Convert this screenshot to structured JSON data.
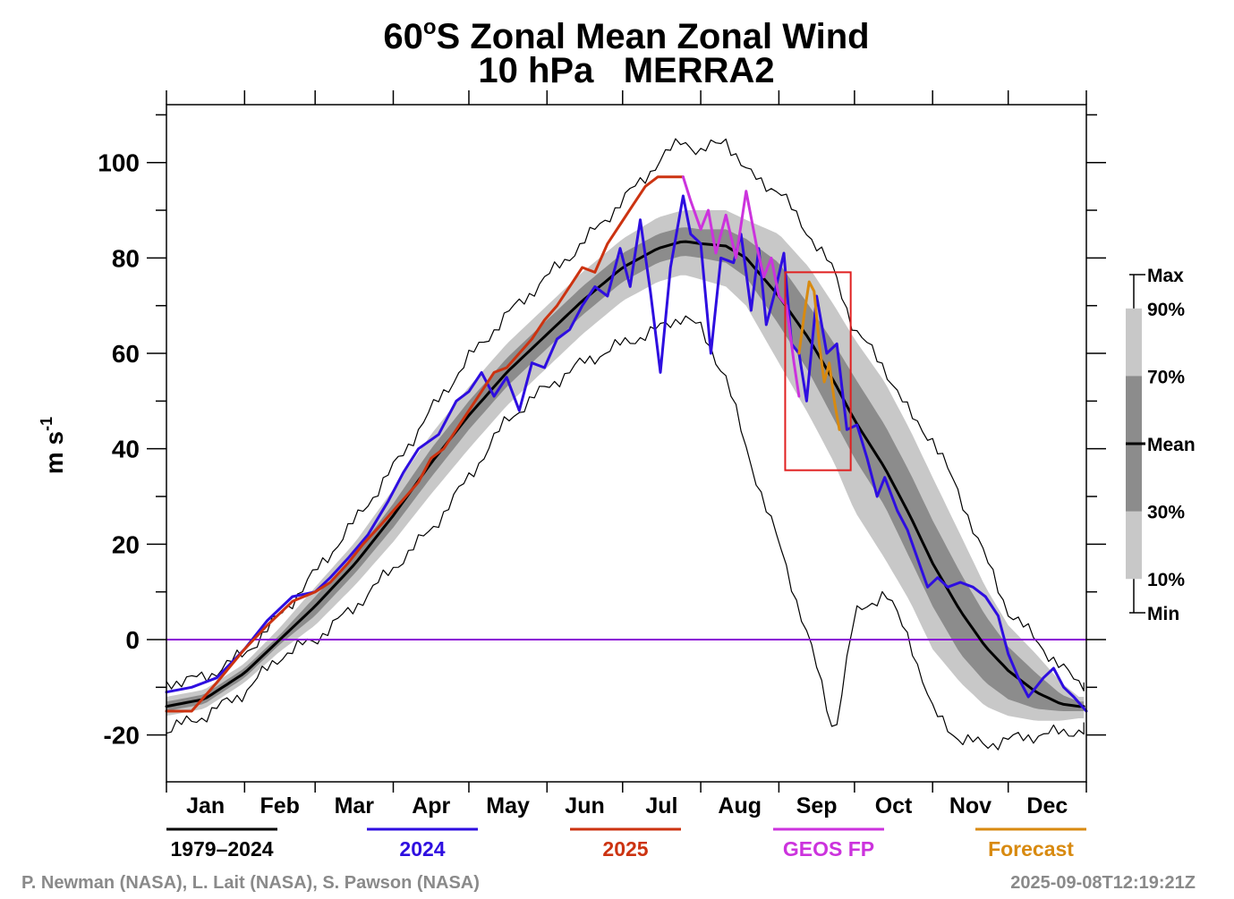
{
  "chart_data": {
    "type": "line",
    "title": "60°S Zonal Mean Zonal Wind",
    "title_prefix": "60",
    "title_degree": "o",
    "title_suffix": "S Zonal Mean Zonal Wind",
    "subtitle": "10 hPa   MERRA2",
    "ylabel_main": "m s",
    "ylabel_sup": "-1",
    "ylim": [
      -30,
      112
    ],
    "xlim": [
      0,
      365
    ],
    "y_ticks": [
      100,
      80,
      60,
      40,
      20,
      0,
      -20
    ],
    "y_tick_labels": [
      "100",
      "80",
      "60",
      "40",
      "20",
      "0",
      "-20"
    ],
    "months": [
      "Jan",
      "Feb",
      "Mar",
      "Apr",
      "May",
      "Jun",
      "Jul",
      "Aug",
      "Sep",
      "Oct",
      "Nov",
      "Dec"
    ],
    "month_starts": [
      0,
      31,
      59,
      90,
      120,
      151,
      181,
      212,
      243,
      273,
      304,
      334,
      365
    ],
    "zero_line": 0,
    "colors": {
      "mean": "#000000",
      "band_outer": "#c8c8c8",
      "band_inner": "#8c8c8c",
      "y2024": "#2e0ee0",
      "y2025": "#cc3311",
      "geos_fp": "#cc33dd",
      "forecast": "#d88a10",
      "zero_line": "#8a00d6",
      "highlight_box": "#e02020"
    },
    "climatology_curve": {
      "x": [
        0,
        15,
        31,
        45,
        59,
        75,
        90,
        105,
        120,
        135,
        151,
        165,
        181,
        195,
        205,
        212,
        222,
        230,
        243,
        255,
        265,
        273,
        285,
        295,
        304,
        315,
        325,
        334,
        345,
        355,
        362
      ],
      "mean": [
        -14,
        -12.5,
        -7,
        0,
        7,
        16,
        26,
        37,
        47,
        56,
        64,
        71,
        78,
        82,
        83.5,
        83,
        82.5,
        80,
        72,
        63,
        54,
        46,
        36,
        26,
        16,
        6,
        -1.5,
        -6.5,
        -11,
        -13.5,
        -14
      ],
      "p30": [
        -15,
        -13.5,
        -8,
        -1,
        5,
        14,
        23.5,
        34,
        44,
        53,
        61,
        68,
        75,
        79,
        80.5,
        80,
        79,
        76,
        66,
        56,
        46,
        38,
        28,
        17,
        7,
        -3,
        -9,
        -12.5,
        -14.5,
        -15,
        -15
      ],
      "p70": [
        -13,
        -11.5,
        -6,
        1,
        9,
        18,
        28.5,
        40,
        50,
        59,
        67,
        74,
        81,
        85,
        86.5,
        86,
        86,
        84,
        79,
        70,
        62,
        55,
        45,
        35,
        25,
        14,
        5,
        -1.5,
        -7,
        -11.5,
        -13
      ],
      "p10": [
        -16,
        -14.5,
        -9,
        -2.5,
        3,
        11.5,
        20.5,
        30.5,
        40,
        49,
        57,
        64,
        71,
        75,
        76.5,
        75.5,
        74,
        70,
        58,
        47,
        37,
        27,
        17,
        8,
        -2,
        -9,
        -14,
        -16,
        -17,
        -17,
        -16.5
      ],
      "p90": [
        -12,
        -10.5,
        -5,
        2.5,
        11,
        20.5,
        31.5,
        43,
        53,
        62,
        70,
        77,
        84,
        88.5,
        90,
        90,
        90,
        88,
        85,
        78,
        70,
        63,
        54,
        44,
        34,
        22,
        11,
        3,
        -3,
        -9,
        -12
      ],
      "min": [
        -19,
        -16,
        -11,
        -3.5,
        0,
        7,
        15,
        23,
        34,
        46,
        53,
        58,
        62,
        65,
        68,
        65,
        55,
        40,
        20,
        0,
        -20,
        5,
        10,
        0,
        -15,
        -21,
        -22,
        -21,
        -20,
        -19.5,
        -19
      ],
      "max": [
        -9,
        -8,
        -3,
        5,
        14,
        25,
        36,
        48,
        59,
        68,
        76,
        83,
        92,
        100,
        105,
        102,
        105,
        98,
        94,
        85,
        77,
        65,
        57,
        47,
        42,
        30,
        17,
        6,
        0,
        -6,
        -9
      ]
    },
    "series": [
      {
        "name": "1979–2024",
        "color": "#000000",
        "style": "mean"
      },
      {
        "name": "2024",
        "color": "#2e0ee0",
        "x": [
          0,
          10,
          20,
          31,
          40,
          50,
          59,
          65,
          72,
          80,
          88,
          94,
          100,
          108,
          115,
          120,
          125,
          130,
          135,
          140,
          145,
          150,
          155,
          160,
          165,
          170,
          175,
          180,
          184,
          188,
          192,
          196,
          200,
          205,
          208,
          212,
          216,
          220,
          225,
          228,
          232,
          235,
          238,
          241,
          245,
          248,
          251,
          254,
          258,
          262,
          266,
          270,
          274,
          278,
          282,
          285,
          290,
          294,
          298,
          302,
          306,
          310,
          315,
          320,
          325,
          330,
          334,
          338,
          342,
          348,
          352,
          356,
          360,
          365
        ],
        "y": [
          -11,
          -10,
          -8,
          -2,
          4,
          9,
          10,
          13,
          17,
          22,
          29,
          35,
          40,
          43,
          50,
          52,
          56,
          51,
          55,
          48,
          58,
          57,
          63,
          65,
          70,
          74,
          72,
          82,
          74,
          88,
          73,
          56,
          78,
          93,
          85,
          83,
          60,
          80,
          79,
          85,
          69,
          82,
          66,
          72,
          81,
          62,
          60,
          50,
          72,
          60,
          62,
          44,
          45,
          38,
          30,
          34,
          27,
          23,
          17,
          11,
          13,
          11,
          12,
          11,
          9,
          5,
          -3,
          -8,
          -12,
          -8,
          -6,
          -10,
          -12,
          -15
        ]
      },
      {
        "name": "2025",
        "color": "#cc3311",
        "x": [
          0,
          10,
          20,
          31,
          40,
          50,
          59,
          65,
          72,
          78,
          85,
          90,
          95,
          100,
          105,
          110,
          115,
          120,
          125,
          130,
          135,
          140,
          145,
          150,
          155,
          160,
          165,
          170,
          175,
          180,
          185,
          190,
          195,
          200,
          205
        ],
        "y": [
          -15,
          -15,
          -9,
          -2,
          3,
          8,
          10,
          12,
          16,
          20,
          24,
          27,
          30,
          33,
          38,
          40,
          44,
          48,
          52,
          56,
          57,
          60,
          63,
          67,
          70,
          74,
          78,
          77,
          83,
          87,
          91,
          95,
          97,
          97,
          97
        ]
      },
      {
        "name": "GEOS FP",
        "color": "#cc33dd",
        "x": [
          205,
          208,
          212,
          215,
          218,
          222,
          226,
          230,
          234,
          237,
          240,
          243,
          246,
          249,
          251
        ],
        "y": [
          97,
          92,
          86,
          90,
          81,
          89,
          80,
          94,
          83,
          76,
          80,
          72,
          70,
          58,
          51
        ]
      },
      {
        "name": "Forecast",
        "color": "#d88a10",
        "x": [
          251,
          253,
          255,
          257,
          259,
          261,
          263,
          265,
          267
        ],
        "y": [
          60,
          68,
          75,
          73,
          62,
          54,
          58,
          50,
          44
        ]
      }
    ],
    "highlight_box": {
      "x": [
        245.5,
        271.5
      ],
      "y": [
        35.5,
        77
      ]
    },
    "legend": {
      "position": "right",
      "items": [
        {
          "label": "Max",
          "value": 100
        },
        {
          "label": "90%",
          "value": 90
        },
        {
          "label": "70%",
          "value": 70
        },
        {
          "label": "Mean",
          "value": 50
        },
        {
          "label": "30%",
          "value": 30
        },
        {
          "label": "10%",
          "value": 10
        },
        {
          "label": "Min",
          "value": 0
        }
      ]
    },
    "bottom_legend": [
      {
        "label": "1979–2024",
        "color": "#000000"
      },
      {
        "label": "2024",
        "color": "#2e0ee0"
      },
      {
        "label": "2025",
        "color": "#cc3311"
      },
      {
        "label": "GEOS FP",
        "color": "#cc33dd"
      },
      {
        "label": "Forecast",
        "color": "#d88a10"
      }
    ],
    "grid": false
  },
  "credits": {
    "authors": "P. Newman (NASA), L. Lait (NASA), S. Pawson (NASA)",
    "timestamp": "2025-09-08T12:19:21Z"
  }
}
